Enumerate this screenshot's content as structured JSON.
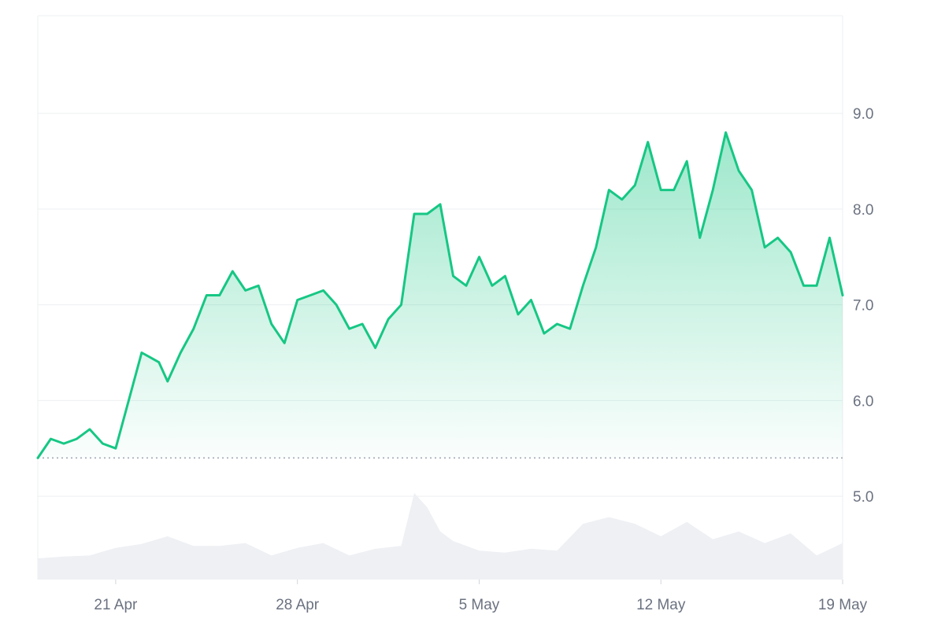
{
  "chart_data": {
    "type": "area",
    "title": "",
    "xlabel": "",
    "ylabel": "",
    "x_range": [
      "2024-04-18T00:00",
      "2024-05-19T00:00"
    ],
    "ylim": [
      4.13,
      10.02
    ],
    "y_ticks": [
      5.0,
      6.0,
      7.0,
      8.0,
      9.0
    ],
    "y_tick_labels": [
      "5.0",
      "6.0",
      "7.0",
      "8.0",
      "9.0"
    ],
    "x_ticks": [
      "2024-04-21",
      "2024-04-28",
      "2024-05-05",
      "2024-05-12",
      "2024-05-19"
    ],
    "x_tick_labels": [
      "21 Apr",
      "28 Apr",
      "5 May",
      "12 May",
      "19 May"
    ],
    "grid": true,
    "baseline_value": 5.4,
    "series": [
      {
        "kind": "price",
        "x": [
          "2024-04-18T00:00",
          "2024-04-18T12:00",
          "2024-04-19T00:00",
          "2024-04-19T12:00",
          "2024-04-20T00:00",
          "2024-04-20T12:00",
          "2024-04-21T00:00",
          "2024-04-21T12:00",
          "2024-04-22T00:00",
          "2024-04-22T08:00",
          "2024-04-22T16:00",
          "2024-04-23T00:00",
          "2024-04-23T12:00",
          "2024-04-24T00:00",
          "2024-04-24T12:00",
          "2024-04-25T00:00",
          "2024-04-25T12:00",
          "2024-04-26T00:00",
          "2024-04-26T12:00",
          "2024-04-27T00:00",
          "2024-04-27T12:00",
          "2024-04-28T00:00",
          "2024-04-28T12:00",
          "2024-04-29T00:00",
          "2024-04-29T12:00",
          "2024-04-30T00:00",
          "2024-04-30T12:00",
          "2024-05-01T00:00",
          "2024-05-01T12:00",
          "2024-05-02T00:00",
          "2024-05-02T12:00",
          "2024-05-03T00:00",
          "2024-05-03T12:00",
          "2024-05-04T00:00",
          "2024-05-04T12:00",
          "2024-05-05T00:00",
          "2024-05-05T12:00",
          "2024-05-06T00:00",
          "2024-05-06T12:00",
          "2024-05-07T00:00",
          "2024-05-07T12:00",
          "2024-05-08T00:00",
          "2024-05-08T12:00",
          "2024-05-09T00:00",
          "2024-05-09T12:00",
          "2024-05-10T00:00",
          "2024-05-10T12:00",
          "2024-05-11T00:00",
          "2024-05-11T12:00",
          "2024-05-12T00:00",
          "2024-05-12T12:00",
          "2024-05-13T00:00",
          "2024-05-13T12:00",
          "2024-05-14T00:00",
          "2024-05-14T12:00",
          "2024-05-15T00:00",
          "2024-05-15T12:00",
          "2024-05-16T00:00",
          "2024-05-16T12:00",
          "2024-05-17T00:00",
          "2024-05-17T12:00",
          "2024-05-18T00:00",
          "2024-05-18T12:00",
          "2024-05-19T00:00"
        ],
        "values": [
          5.4,
          5.6,
          5.55,
          5.6,
          5.7,
          5.55,
          5.5,
          6.0,
          6.5,
          6.45,
          6.4,
          6.2,
          6.5,
          6.75,
          7.1,
          7.1,
          7.35,
          7.15,
          7.2,
          6.8,
          6.6,
          7.05,
          7.1,
          7.15,
          7.0,
          6.75,
          6.8,
          6.55,
          6.85,
          7.0,
          7.95,
          7.95,
          8.05,
          7.3,
          7.2,
          7.5,
          7.2,
          7.3,
          6.9,
          7.05,
          6.7,
          6.8,
          6.75,
          7.2,
          7.6,
          8.2,
          8.1,
          8.25,
          8.7,
          8.2,
          8.2,
          8.5,
          7.7,
          8.2,
          8.8,
          8.4,
          8.2,
          7.6,
          7.7,
          7.55,
          7.2,
          7.2,
          7.7,
          7.1
        ]
      },
      {
        "kind": "volume",
        "x": [
          "2024-04-18T00:00",
          "2024-04-19T00:00",
          "2024-04-20T00:00",
          "2024-04-21T00:00",
          "2024-04-22T00:00",
          "2024-04-23T00:00",
          "2024-04-24T00:00",
          "2024-04-25T00:00",
          "2024-04-26T00:00",
          "2024-04-27T00:00",
          "2024-04-28T00:00",
          "2024-04-29T00:00",
          "2024-04-30T00:00",
          "2024-05-01T00:00",
          "2024-05-02T00:00",
          "2024-05-02T12:00",
          "2024-05-03T00:00",
          "2024-05-03T12:00",
          "2024-05-04T00:00",
          "2024-05-05T00:00",
          "2024-05-06T00:00",
          "2024-05-07T00:00",
          "2024-05-08T00:00",
          "2024-05-09T00:00",
          "2024-05-10T00:00",
          "2024-05-11T00:00",
          "2024-05-12T00:00",
          "2024-05-13T00:00",
          "2024-05-14T00:00",
          "2024-05-15T00:00",
          "2024-05-16T00:00",
          "2024-05-17T00:00",
          "2024-05-18T00:00",
          "2024-05-19T00:00"
        ],
        "values": [
          0.22,
          0.24,
          0.25,
          0.33,
          0.37,
          0.45,
          0.35,
          0.35,
          0.38,
          0.25,
          0.33,
          0.38,
          0.25,
          0.32,
          0.35,
          0.9,
          0.75,
          0.5,
          0.4,
          0.3,
          0.28,
          0.32,
          0.3,
          0.58,
          0.65,
          0.58,
          0.45,
          0.6,
          0.42,
          0.5,
          0.38,
          0.48,
          0.25,
          0.38
        ]
      }
    ],
    "colors": {
      "price_line": "#16c784",
      "area_fill_top": "#16c784",
      "volume_fill": "#eef0f4",
      "grid": "#edeff2",
      "axis_text": "#6b7280",
      "baseline_dots": "#9ca3af"
    }
  }
}
